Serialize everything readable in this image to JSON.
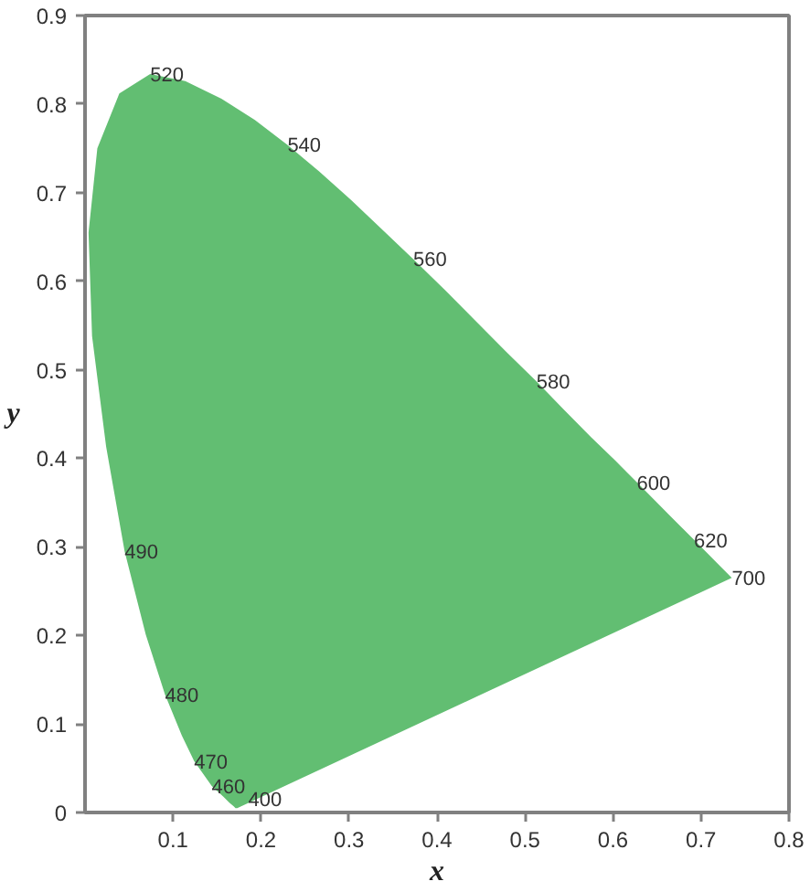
{
  "chart_data": {
    "type": "area",
    "xlabel": "x",
    "ylabel": "y",
    "x": [
      0.173,
      0.171,
      0.169,
      0.164,
      0.157,
      0.144,
      0.124,
      0.11,
      0.091,
      0.069,
      0.045,
      0.024,
      0.008,
      0.004,
      0.014,
      0.039,
      0.074,
      0.114,
      0.155,
      0.193,
      0.23,
      0.266,
      0.302,
      0.337,
      0.373,
      0.409,
      0.444,
      0.479,
      0.513,
      0.545,
      0.575,
      0.603,
      0.627,
      0.666,
      0.692,
      0.708,
      0.719,
      0.726,
      0.735
    ],
    "series": [
      {
        "color": "#62be72",
        "values": [
          0.005,
          0.005,
          0.007,
          0.011,
          0.018,
          0.03,
          0.058,
          0.087,
          0.133,
          0.201,
          0.295,
          0.413,
          0.538,
          0.655,
          0.75,
          0.812,
          0.834,
          0.826,
          0.806,
          0.782,
          0.754,
          0.724,
          0.692,
          0.659,
          0.625,
          0.59,
          0.555,
          0.52,
          0.487,
          0.454,
          0.424,
          0.397,
          0.373,
          0.334,
          0.308,
          0.292,
          0.281,
          0.274,
          0.265
        ]
      }
    ],
    "annotations": [
      {
        "text": "520",
        "x": 0.074,
        "y": 0.834
      },
      {
        "text": "540",
        "x": 0.23,
        "y": 0.754
      },
      {
        "text": "560",
        "x": 0.373,
        "y": 0.625
      },
      {
        "text": "580",
        "x": 0.513,
        "y": 0.487
      },
      {
        "text": "600",
        "x": 0.627,
        "y": 0.373
      },
      {
        "text": "620",
        "x": 0.692,
        "y": 0.308
      },
      {
        "text": "700",
        "x": 0.735,
        "y": 0.265
      },
      {
        "text": "490",
        "x": 0.045,
        "y": 0.295
      },
      {
        "text": "480",
        "x": 0.091,
        "y": 0.133
      },
      {
        "text": "470",
        "x": 0.124,
        "y": 0.058
      },
      {
        "text": "460",
        "x": 0.144,
        "y": 0.03
      },
      {
        "text": "400",
        "x": 0.173,
        "y": 0.005
      }
    ],
    "xlim": [
      0,
      0.8
    ],
    "ylim": [
      0,
      0.9
    ],
    "xticks": [
      0.1,
      0.2,
      0.3,
      0.4,
      0.5,
      0.6,
      0.7,
      0.8
    ],
    "yticks": [
      0,
      0.1,
      0.2,
      0.3,
      0.4,
      0.5,
      0.6,
      0.7,
      0.8,
      0.9
    ]
  }
}
